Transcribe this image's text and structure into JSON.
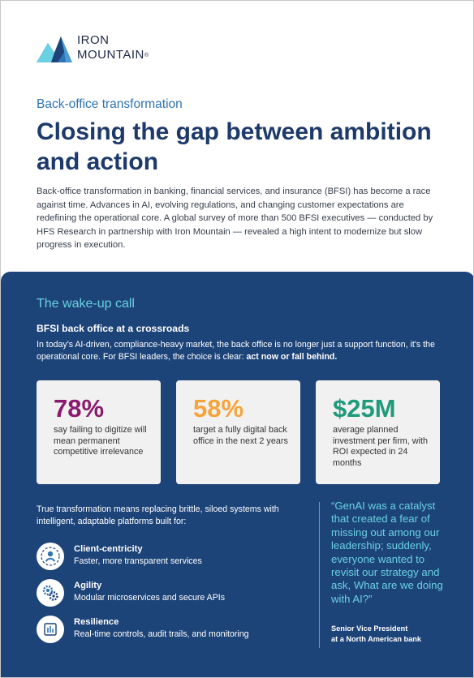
{
  "brand": {
    "name_line1": "IRON",
    "name_line2": "MOUNTAIN",
    "registered_mark": "®",
    "logo_icon": "mountain-logo-icon"
  },
  "header": {
    "eyebrow": "Back-office transformation",
    "title": "Closing the gap between ambition and action",
    "intro": "Back-office transformation in banking, financial services, and insurance (BFSI) has become a race against time. Advances in AI, evolving regulations, and changing customer expectations are redefining the operational core. A global survey of more than 500 BFSI executives — conducted by HFS Research in partnership with Iron Mountain — revealed a high intent to modernize but slow progress in execution."
  },
  "section": {
    "heading": "The wake-up call",
    "subheading": "BFSI back office at a crossroads",
    "body_start": "In today's AI-driven, compliance-heavy market, the back office is no longer just a support function, it's the operational core. For BFSI leaders, the choice is clear: ",
    "body_emphasis": "act now or fall behind."
  },
  "stats": [
    {
      "value": "78%",
      "description": "say failing to digitize will mean permanent competitive irrelevance",
      "color": "#8b1a6f"
    },
    {
      "value": "58%",
      "description": "target a fully digital back office in the next 2 years",
      "color": "#f5a43a"
    },
    {
      "value": "$25M",
      "description": "average planned investment per firm, with ROI expected in 24 months",
      "color": "#1f9a7a"
    }
  ],
  "transformation": {
    "lead": "True transformation means replacing brittle, siloed systems with intelligent, adaptable platforms built for:",
    "benefits": [
      {
        "title": "Client-centricity",
        "description": "Faster, more transparent services",
        "icon": "client-centricity-icon"
      },
      {
        "title": "Agility",
        "description": "Modular microservices and secure APIs",
        "icon": "gears-icon"
      },
      {
        "title": "Resilience",
        "description": "Real-time controls, audit trails, and monitoring",
        "icon": "monitoring-icon"
      }
    ]
  },
  "quote": {
    "text": "“GenAI was a catalyst that created a fear of missing out among our leadership; suddenly, everyone wanted  to revisit our strategy and ask, What are we doing with AI?”",
    "attribution_line1": "Senior Vice President",
    "attribution_line2": "at a North American bank"
  },
  "colors": {
    "navy_panel": "#1d4479",
    "title_navy": "#1d3a6b",
    "eyebrow_blue": "#2e73b3",
    "accent_cyan": "#6ad1e3",
    "card_bg": "#f1f1f1"
  }
}
